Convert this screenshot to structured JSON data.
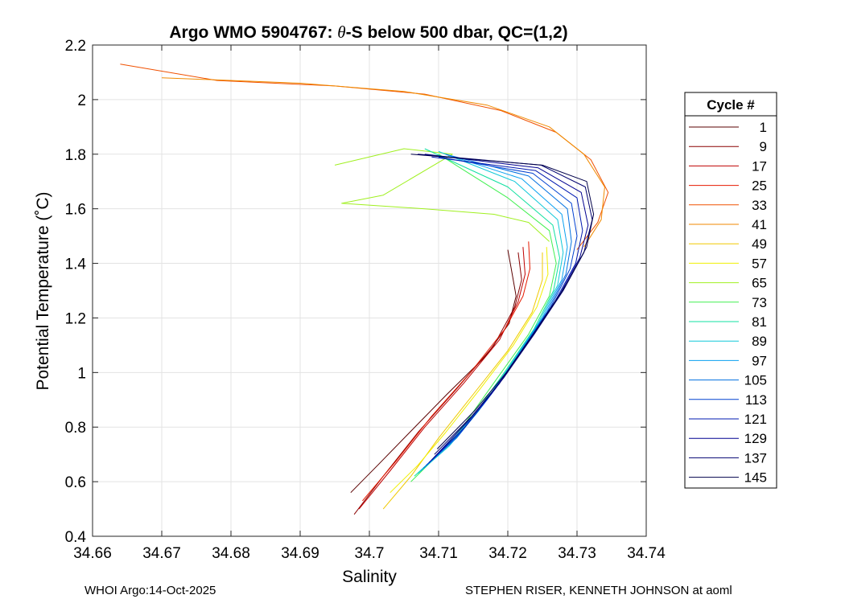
{
  "chart_data": {
    "type": "line",
    "title": {
      "prefix": "Argo WMO 5904767: ",
      "theta": "θ",
      "suffix": "-S below 500 dbar,  QC=(1,2)"
    },
    "xlabel": "Salinity",
    "ylabel": "Potential Temperature (˚C)",
    "xlim": [
      34.66,
      34.74
    ],
    "ylim": [
      0.4,
      2.2
    ],
    "xticks": [
      "34.66",
      "34.67",
      "34.68",
      "34.69",
      "34.7",
      "34.71",
      "34.72",
      "34.73",
      "34.74"
    ],
    "yticks": [
      "0.4",
      "0.6",
      "0.8",
      "1",
      "1.2",
      "1.4",
      "1.6",
      "1.8",
      "2",
      "2.2"
    ],
    "grid": true,
    "legend": {
      "title": "Cycle #",
      "placement": "right-outside",
      "entries": [
        {
          "label": "1",
          "color": "#5a0000"
        },
        {
          "label": "9",
          "color": "#8a0000"
        },
        {
          "label": "17",
          "color": "#bf0000"
        },
        {
          "label": "25",
          "color": "#e61a00"
        },
        {
          "label": "33",
          "color": "#f05000"
        },
        {
          "label": "41",
          "color": "#f08a00"
        },
        {
          "label": "49",
          "color": "#f0c800"
        },
        {
          "label": "57",
          "color": "#f0f000"
        },
        {
          "label": "65",
          "color": "#a0f020"
        },
        {
          "label": "73",
          "color": "#40f050"
        },
        {
          "label": "81",
          "color": "#10e0a0"
        },
        {
          "label": "89",
          "color": "#10c8d8"
        },
        {
          "label": "97",
          "color": "#0aa0f0"
        },
        {
          "label": "105",
          "color": "#0070e0"
        },
        {
          "label": "113",
          "color": "#0040d0"
        },
        {
          "label": "121",
          "color": "#0018b0"
        },
        {
          "label": "129",
          "color": "#000090"
        },
        {
          "label": "137",
          "color": "#000070"
        },
        {
          "label": "145",
          "color": "#00004a"
        }
      ]
    },
    "series": [
      {
        "name": "1",
        "color": "#5a0000",
        "points": [
          [
            34.6973,
            0.56
          ],
          [
            34.7012,
            0.66
          ],
          [
            34.7058,
            0.78
          ],
          [
            34.7112,
            0.92
          ],
          [
            34.7168,
            1.06
          ],
          [
            34.7202,
            1.18
          ],
          [
            34.7212,
            1.28
          ],
          [
            34.7205,
            1.38
          ],
          [
            34.72,
            1.45
          ]
        ]
      },
      {
        "name": "9",
        "color": "#8a0000",
        "points": [
          [
            34.6978,
            0.48
          ],
          [
            34.702,
            0.62
          ],
          [
            34.707,
            0.78
          ],
          [
            34.7126,
            0.94
          ],
          [
            34.718,
            1.1
          ],
          [
            34.721,
            1.24
          ],
          [
            34.722,
            1.34
          ],
          [
            34.7215,
            1.44
          ]
        ]
      },
      {
        "name": "17",
        "color": "#bf0000",
        "points": [
          [
            34.6985,
            0.5
          ],
          [
            34.703,
            0.64
          ],
          [
            34.708,
            0.8
          ],
          [
            34.7136,
            0.96
          ],
          [
            34.7188,
            1.12
          ],
          [
            34.7215,
            1.26
          ],
          [
            34.7225,
            1.36
          ],
          [
            34.7222,
            1.46
          ]
        ]
      },
      {
        "name": "25",
        "color": "#e61a00",
        "points": [
          [
            34.699,
            0.53
          ],
          [
            34.704,
            0.68
          ],
          [
            34.709,
            0.84
          ],
          [
            34.7146,
            1.0
          ],
          [
            34.7196,
            1.16
          ],
          [
            34.7222,
            1.28
          ],
          [
            34.7232,
            1.38
          ],
          [
            34.723,
            1.48
          ]
        ]
      },
      {
        "name": "33",
        "color": "#f05000",
        "points": [
          [
            34.664,
            2.13
          ],
          [
            34.678,
            2.07
          ],
          [
            34.695,
            2.05
          ],
          [
            34.708,
            2.02
          ],
          [
            34.719,
            1.96
          ],
          [
            34.727,
            1.88
          ],
          [
            34.732,
            1.78
          ],
          [
            34.7345,
            1.66
          ],
          [
            34.733,
            1.55
          ],
          [
            34.73,
            1.45
          ]
        ]
      },
      {
        "name": "41",
        "color": "#f08a00",
        "points": [
          [
            34.67,
            2.08
          ],
          [
            34.69,
            2.06
          ],
          [
            34.705,
            2.03
          ],
          [
            34.717,
            1.98
          ],
          [
            34.726,
            1.9
          ],
          [
            34.731,
            1.8
          ],
          [
            34.734,
            1.68
          ],
          [
            34.7335,
            1.56
          ],
          [
            34.731,
            1.46
          ]
        ]
      },
      {
        "name": "49",
        "color": "#f0c800",
        "points": [
          [
            34.702,
            0.5
          ],
          [
            34.706,
            0.62
          ],
          [
            34.71,
            0.76
          ],
          [
            34.715,
            0.92
          ],
          [
            34.72,
            1.08
          ],
          [
            34.7235,
            1.22
          ],
          [
            34.725,
            1.34
          ],
          [
            34.725,
            1.44
          ]
        ]
      },
      {
        "name": "57",
        "color": "#f0f000",
        "points": [
          [
            34.703,
            0.56
          ],
          [
            34.707,
            0.66
          ],
          [
            34.711,
            0.78
          ],
          [
            34.716,
            0.94
          ],
          [
            34.7208,
            1.1
          ],
          [
            34.7242,
            1.24
          ],
          [
            34.7258,
            1.36
          ],
          [
            34.7256,
            1.46
          ]
        ]
      },
      {
        "name": "65",
        "color": "#a0f020",
        "points": [
          [
            34.695,
            1.76
          ],
          [
            34.705,
            1.82
          ],
          [
            34.712,
            1.8
          ],
          [
            34.702,
            1.65
          ],
          [
            34.696,
            1.62
          ],
          [
            34.708,
            1.6
          ],
          [
            34.718,
            1.58
          ],
          [
            34.723,
            1.55
          ],
          [
            34.726,
            1.48
          ]
        ]
      },
      {
        "name": "73",
        "color": "#40f050",
        "points": [
          [
            34.706,
            0.6
          ],
          [
            34.71,
            0.7
          ],
          [
            34.714,
            0.82
          ],
          [
            34.7185,
            0.98
          ],
          [
            34.723,
            1.14
          ],
          [
            34.726,
            1.28
          ],
          [
            34.727,
            1.4
          ],
          [
            34.726,
            1.52
          ],
          [
            34.72,
            1.64
          ],
          [
            34.71,
            1.8
          ]
        ]
      },
      {
        "name": "81",
        "color": "#10e0a0",
        "points": [
          [
            34.7065,
            0.62
          ],
          [
            34.7108,
            0.72
          ],
          [
            34.715,
            0.84
          ],
          [
            34.7195,
            1.0
          ],
          [
            34.7238,
            1.16
          ],
          [
            34.7266,
            1.3
          ],
          [
            34.7275,
            1.42
          ],
          [
            34.7265,
            1.54
          ],
          [
            34.72,
            1.68
          ],
          [
            34.708,
            1.82
          ]
        ]
      },
      {
        "name": "89",
        "color": "#10c8d8",
        "points": [
          [
            34.707,
            0.63
          ],
          [
            34.7115,
            0.73
          ],
          [
            34.7158,
            0.86
          ],
          [
            34.7202,
            1.02
          ],
          [
            34.7244,
            1.18
          ],
          [
            34.7272,
            1.32
          ],
          [
            34.728,
            1.44
          ],
          [
            34.7272,
            1.56
          ],
          [
            34.721,
            1.7
          ],
          [
            34.71,
            1.81
          ]
        ]
      },
      {
        "name": "97",
        "color": "#0aa0f0",
        "points": [
          [
            34.7074,
            0.64
          ],
          [
            34.712,
            0.75
          ],
          [
            34.7164,
            0.88
          ],
          [
            34.7208,
            1.04
          ],
          [
            34.725,
            1.2
          ],
          [
            34.7278,
            1.34
          ],
          [
            34.7286,
            1.46
          ],
          [
            34.7278,
            1.58
          ],
          [
            34.722,
            1.71
          ],
          [
            34.711,
            1.8
          ]
        ]
      },
      {
        "name": "105",
        "color": "#0070e0",
        "points": [
          [
            34.7078,
            0.65
          ],
          [
            34.7126,
            0.76
          ],
          [
            34.717,
            0.9
          ],
          [
            34.7214,
            1.06
          ],
          [
            34.7256,
            1.22
          ],
          [
            34.7284,
            1.36
          ],
          [
            34.7292,
            1.48
          ],
          [
            34.7286,
            1.6
          ],
          [
            34.723,
            1.72
          ],
          [
            34.711,
            1.8
          ]
        ]
      },
      {
        "name": "113",
        "color": "#0040d0",
        "points": [
          [
            34.7082,
            0.66
          ],
          [
            34.7132,
            0.78
          ],
          [
            34.7176,
            0.92
          ],
          [
            34.722,
            1.08
          ],
          [
            34.7262,
            1.24
          ],
          [
            34.729,
            1.38
          ],
          [
            34.73,
            1.5
          ],
          [
            34.7292,
            1.62
          ],
          [
            34.7236,
            1.73
          ],
          [
            34.71,
            1.79
          ]
        ]
      },
      {
        "name": "121",
        "color": "#0018b0",
        "points": [
          [
            34.7086,
            0.67
          ],
          [
            34.7138,
            0.8
          ],
          [
            34.7182,
            0.94
          ],
          [
            34.7226,
            1.1
          ],
          [
            34.7268,
            1.26
          ],
          [
            34.7298,
            1.4
          ],
          [
            34.7308,
            1.52
          ],
          [
            34.73,
            1.64
          ],
          [
            34.724,
            1.74
          ],
          [
            34.709,
            1.79
          ]
        ]
      },
      {
        "name": "129",
        "color": "#000090",
        "points": [
          [
            34.709,
            0.68
          ],
          [
            34.7142,
            0.82
          ],
          [
            34.7188,
            0.96
          ],
          [
            34.7232,
            1.12
          ],
          [
            34.7274,
            1.28
          ],
          [
            34.7304,
            1.42
          ],
          [
            34.7316,
            1.54
          ],
          [
            34.7306,
            1.66
          ],
          [
            34.7244,
            1.75
          ],
          [
            34.708,
            1.8
          ]
        ]
      },
      {
        "name": "137",
        "color": "#000070",
        "points": [
          [
            34.7094,
            0.7
          ],
          [
            34.7148,
            0.84
          ],
          [
            34.7194,
            0.98
          ],
          [
            34.7238,
            1.14
          ],
          [
            34.728,
            1.3
          ],
          [
            34.731,
            1.44
          ],
          [
            34.7322,
            1.56
          ],
          [
            34.7312,
            1.68
          ],
          [
            34.7248,
            1.76
          ],
          [
            34.707,
            1.8
          ]
        ]
      },
      {
        "name": "145",
        "color": "#00004a",
        "points": [
          [
            34.7098,
            0.72
          ],
          [
            34.7152,
            0.86
          ],
          [
            34.7198,
            1.0
          ],
          [
            34.7242,
            1.16
          ],
          [
            34.7284,
            1.32
          ],
          [
            34.7314,
            1.46
          ],
          [
            34.7324,
            1.58
          ],
          [
            34.7314,
            1.7
          ],
          [
            34.725,
            1.76
          ],
          [
            34.706,
            1.8
          ]
        ]
      }
    ]
  },
  "footer": {
    "left": "WHOI Argo:14-Oct-2025",
    "right": "STEPHEN RISER, KENNETH JOHNSON at aoml"
  }
}
